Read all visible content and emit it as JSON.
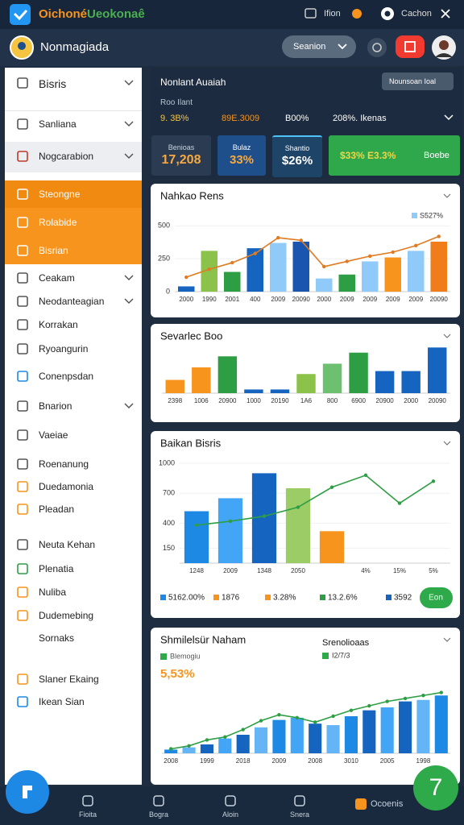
{
  "topbar": {
    "title_a": "Oichoné",
    "title_b": "Ueokonaê",
    "items": [
      "Ifion",
      "Cachon"
    ]
  },
  "header": {
    "title": "Nonmagiada",
    "button": "Seanion"
  },
  "sidebar": {
    "items": [
      "Bisris",
      "Sanliana",
      "Nogcarabion",
      "Steongne",
      "Rolabide",
      "Bisrian",
      "Ceakam",
      "Neodanteagian",
      "Korrakan",
      "Ryoangurin",
      "Conenpsdan",
      "Bnarion",
      "Vaeiae",
      "Roenanung",
      "Duedamonia",
      "Pleadan",
      "Neuta Kehan",
      "Plenatia",
      "Nuliba",
      "Dudemebing",
      "Sornaks",
      "Slaner Ekaing",
      "Ikean Sian"
    ]
  },
  "summary": {
    "title": "Nonlant Auaiah",
    "button": "Nounsoan Ioal",
    "subtitle": "Roo Ilant",
    "stats": [
      "9. 3B%",
      "89Е.3009",
      "B00%",
      "208%. Ikenas"
    ],
    "cards": [
      {
        "label": "Benioas",
        "value": "17,208"
      },
      {
        "label": "Bulaz",
        "value": "33%"
      },
      {
        "label": "Shantio",
        "value": "$26%"
      },
      {
        "label": "Boebe",
        "value": "$33% E3.3%"
      }
    ]
  },
  "charts": [
    {
      "type": "bar",
      "title": "Nahkao Rens",
      "legend": "S527%",
      "ylim": [
        0,
        600
      ],
      "yticks": [
        0,
        250,
        500
      ],
      "categories": [
        "2000",
        "1990",
        "2001",
        "400",
        "2009",
        "20090",
        "2000",
        "2009",
        "2009",
        "2009",
        "2009",
        "20090"
      ],
      "values": [
        40,
        310,
        150,
        330,
        370,
        380,
        100,
        130,
        230,
        260,
        310,
        380
      ],
      "colors": [
        "#1565c0",
        "#8bc34a",
        "#2e9e44",
        "#1565c0",
        "#90caf9",
        "#1a56b0",
        "#90caf9",
        "#2e9e44",
        "#90caf9",
        "#f7941d",
        "#90caf9",
        "#f07c1a"
      ],
      "line": {
        "color": "#e07b22",
        "values": [
          110,
          170,
          220,
          290,
          410,
          390,
          190,
          230,
          270,
          300,
          350,
          420
        ]
      }
    },
    {
      "type": "bar",
      "title": "Sevarlec Boo",
      "ylim": [
        0,
        70
      ],
      "categories": [
        "2398",
        "1006",
        "20900",
        "1000",
        "20190",
        "1A6",
        "800",
        "6900",
        "20900",
        "2000",
        "20090"
      ],
      "values": [
        18,
        35,
        50,
        5,
        5,
        26,
        40,
        55,
        30,
        30,
        62
      ],
      "colors": [
        "#f7941d",
        "#f7941d",
        "#2e9e44",
        "#1565c0",
        "#1565c0",
        "#8bc34a",
        "#6cc070",
        "#2e9e44",
        "#1565c0",
        "#1565c0",
        "#1565c0"
      ]
    },
    {
      "type": "bar",
      "title": "Baikan Bisris",
      "ylim": [
        0,
        1000
      ],
      "yticks": [
        150,
        400,
        700,
        1000
      ],
      "categories": [
        "1248",
        "2009",
        "1348",
        "2050",
        "",
        "4%",
        "15%",
        "5%"
      ],
      "values": [
        520,
        650,
        900,
        750,
        320,
        null,
        null,
        null
      ],
      "colors": [
        "#1e88e5",
        "#42a5f5",
        "#1565c0",
        "#9ccc65",
        "#f7941d",
        "#1565c0",
        "#1565c0",
        "#1565c0"
      ],
      "line": {
        "color": "#2e9e44",
        "values": [
          380,
          420,
          470,
          560,
          760,
          880,
          600,
          820
        ]
      },
      "stats": [
        "5162.00%",
        "1876",
        "3.28%",
        "13.2.6%",
        "3592"
      ],
      "button": "Eon"
    },
    {
      "type": "bar",
      "title": "Shmilelsür Naham",
      "note": "Blemogiu",
      "big_value": "5,53%",
      "side_title": "Srenolioaas",
      "side_note": "I2/7/3",
      "ylim": [
        0,
        100
      ],
      "categories": [
        "2008",
        "",
        "1999",
        "",
        "2018",
        "",
        "2009",
        "",
        "2008",
        "",
        "3010",
        "",
        "2005",
        "",
        "1998",
        ""
      ],
      "values": [
        5,
        8,
        12,
        20,
        25,
        35,
        45,
        48,
        40,
        38,
        50,
        58,
        62,
        70,
        72,
        78
      ],
      "colors": [
        "#1e88e5",
        "#64b5f6",
        "#1565c0",
        "#42a5f5",
        "#1565c0",
        "#64b5f6",
        "#1e88e5",
        "#42a5f5",
        "#1565c0",
        "#64b5f6",
        "#1e88e5",
        "#1565c0",
        "#42a5f5",
        "#1565c0",
        "#64b5f6",
        "#1e88e5"
      ],
      "line": {
        "color": "#2e9e44",
        "values": [
          6,
          10,
          18,
          22,
          32,
          44,
          52,
          48,
          42,
          50,
          58,
          64,
          70,
          74,
          78,
          82
        ]
      }
    }
  ],
  "bottom_nav": [
    "Fioita",
    "Bogra",
    "Aloin",
    "Snera",
    "Ocoenis"
  ],
  "fab": "7"
}
